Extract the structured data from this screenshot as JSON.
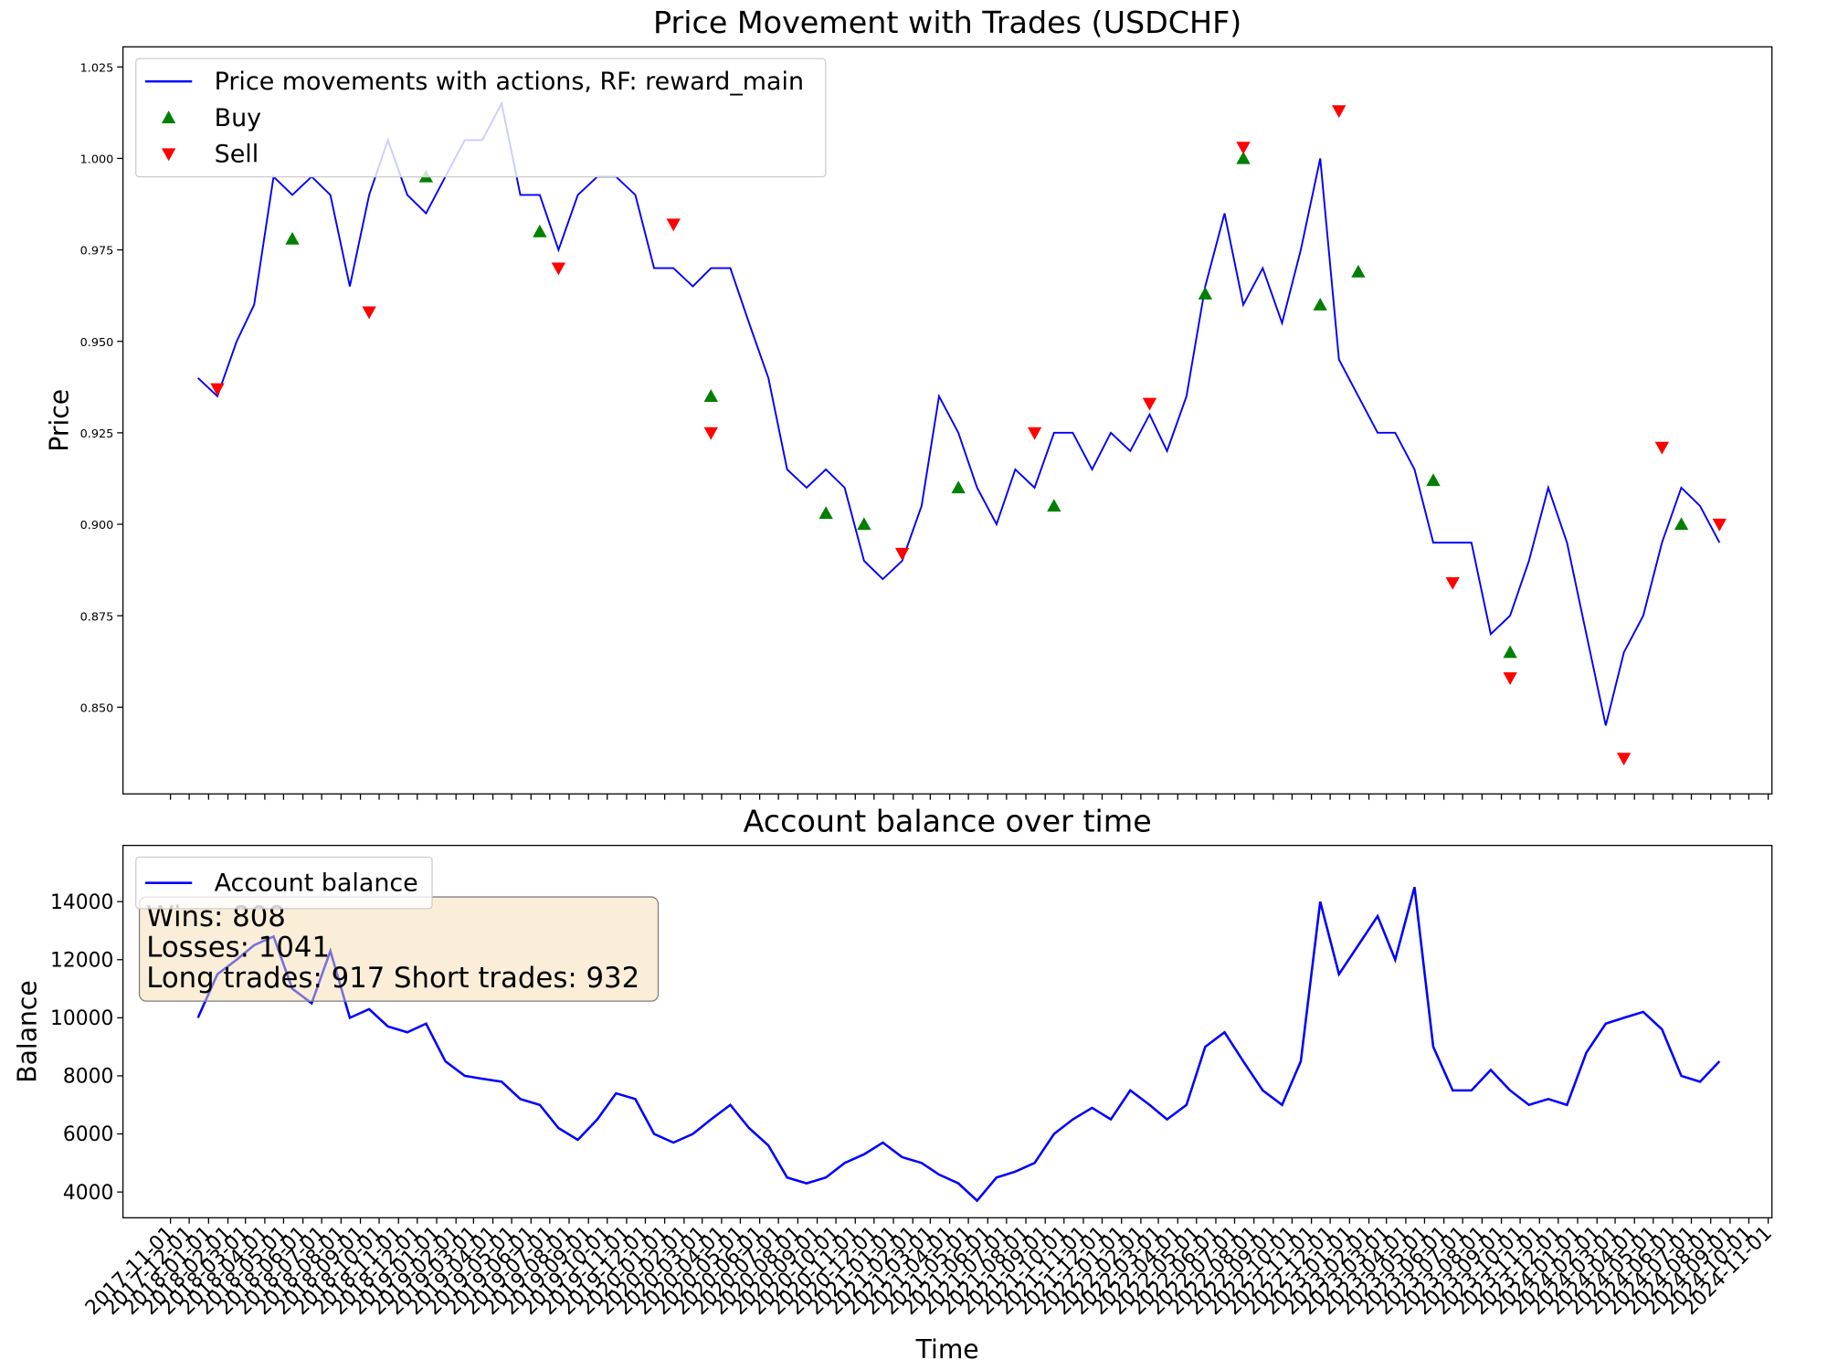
{
  "chart_data": [
    {
      "type": "line",
      "title": "Price Movement with Trades (USDCHF)",
      "ylabel": "Price",
      "legend": "upper left",
      "xlim": [
        "2017-08-17",
        "2024-11-07"
      ],
      "ylim": [
        0.8263,
        1.0305
      ],
      "yticks": [
        {
          "value": 0.85,
          "label": "0.850"
        },
        {
          "value": 0.875,
          "label": "0.875"
        },
        {
          "value": 0.9,
          "label": "0.900"
        },
        {
          "value": 0.925,
          "label": "0.925"
        },
        {
          "value": 0.95,
          "label": "0.950"
        },
        {
          "value": 0.975,
          "label": "0.975"
        },
        {
          "value": 1.0,
          "label": "1.000"
        },
        {
          "value": 1.025,
          "label": "1.025"
        }
      ],
      "x": [
        "2017-12-15",
        "2018-01-15",
        "2018-02-15",
        "2018-03-15",
        "2018-04-15",
        "2018-05-15",
        "2018-06-15",
        "2018-07-15",
        "2018-08-15",
        "2018-09-15",
        "2018-10-15",
        "2018-11-15",
        "2018-12-15",
        "2019-01-15",
        "2019-02-15",
        "2019-03-15",
        "2019-04-15",
        "2019-05-15",
        "2019-06-15",
        "2019-07-15",
        "2019-08-15",
        "2019-09-15",
        "2019-10-15",
        "2019-11-15",
        "2019-12-15",
        "2020-01-15",
        "2020-02-15",
        "2020-03-15",
        "2020-04-15",
        "2020-05-15",
        "2020-06-15",
        "2020-07-15",
        "2020-08-15",
        "2020-09-15",
        "2020-10-15",
        "2020-11-15",
        "2020-12-15",
        "2021-01-15",
        "2021-02-15",
        "2021-03-15",
        "2021-04-15",
        "2021-05-15",
        "2021-06-15",
        "2021-07-15",
        "2021-08-15",
        "2021-09-15",
        "2021-10-15",
        "2021-11-15",
        "2021-12-15",
        "2022-01-15",
        "2022-02-15",
        "2022-03-15",
        "2022-04-15",
        "2022-05-15",
        "2022-06-15",
        "2022-07-15",
        "2022-08-15",
        "2022-09-15",
        "2022-10-15",
        "2022-11-15",
        "2022-12-15",
        "2023-01-15",
        "2023-02-15",
        "2023-03-15",
        "2023-04-15",
        "2023-05-15",
        "2023-06-15",
        "2023-07-15",
        "2023-08-15",
        "2023-09-15",
        "2023-10-15",
        "2023-11-15",
        "2023-12-15",
        "2024-01-15",
        "2024-02-15",
        "2024-03-15",
        "2024-04-15",
        "2024-05-15",
        "2024-06-15",
        "2024-07-15",
        "2024-08-15"
      ],
      "series": [
        {
          "name": "Price movements with actions, RF: reward_main",
          "type": "line",
          "color": "#0000ff",
          "values": [
            0.94,
            0.935,
            0.95,
            0.96,
            0.995,
            0.99,
            0.995,
            0.99,
            0.965,
            0.99,
            1.005,
            0.99,
            0.985,
            0.995,
            1.005,
            1.005,
            1.015,
            0.99,
            0.99,
            0.975,
            0.99,
            0.995,
            0.995,
            0.99,
            0.97,
            0.97,
            0.965,
            0.97,
            0.97,
            0.955,
            0.94,
            0.915,
            0.91,
            0.915,
            0.91,
            0.89,
            0.885,
            0.89,
            0.905,
            0.935,
            0.925,
            0.91,
            0.9,
            0.915,
            0.91,
            0.925,
            0.925,
            0.915,
            0.925,
            0.92,
            0.93,
            0.92,
            0.935,
            0.965,
            0.985,
            0.96,
            0.97,
            0.955,
            0.975,
            1.0,
            0.945,
            0.935,
            0.925,
            0.925,
            0.915,
            0.895,
            0.895,
            0.895,
            0.87,
            0.875,
            0.89,
            0.91,
            0.895,
            0.87,
            0.845,
            0.865,
            0.875,
            0.895,
            0.91,
            0.905,
            0.895
          ]
        },
        {
          "name": "Buy",
          "type": "scatter",
          "marker": "up",
          "color": "#008000",
          "x": [
            "2018-05-15",
            "2018-12-15",
            "2019-06-15",
            "2020-03-15",
            "2020-09-15",
            "2020-11-15",
            "2021-04-15",
            "2021-09-15",
            "2022-05-15",
            "2022-07-15",
            "2022-11-15",
            "2023-01-15",
            "2023-05-15",
            "2023-09-15",
            "2024-06-15"
          ],
          "values": [
            0.978,
            0.995,
            0.98,
            0.935,
            0.903,
            0.9,
            0.91,
            0.905,
            0.963,
            1.0,
            0.96,
            0.969,
            0.912,
            0.865,
            0.9
          ]
        },
        {
          "name": "Sell",
          "type": "scatter",
          "marker": "down",
          "color": "#ff0000",
          "x": [
            "2018-01-15",
            "2018-09-15",
            "2019-07-15",
            "2020-01-15",
            "2020-03-15",
            "2021-01-15",
            "2021-08-15",
            "2022-02-15",
            "2022-07-15",
            "2022-12-15",
            "2023-06-15",
            "2023-09-15",
            "2024-03-15",
            "2024-05-15",
            "2024-08-15"
          ],
          "values": [
            0.937,
            0.958,
            0.97,
            0.982,
            0.925,
            0.892,
            0.925,
            0.933,
            1.003,
            1.013,
            0.884,
            0.858,
            0.836,
            0.921,
            0.9
          ]
        }
      ]
    },
    {
      "type": "line",
      "title": "Account balance over time",
      "xlabel": "Time",
      "ylabel": "Balance",
      "legend": "upper left",
      "xlim": [
        "2017-08-17",
        "2024-11-07"
      ],
      "ylim": [
        3113,
        15935
      ],
      "yticks": [
        4000,
        6000,
        8000,
        10000,
        12000,
        14000
      ],
      "xticks": [
        "2017-11-01",
        "2017-12-01",
        "2018-01-01",
        "2018-02-01",
        "2018-03-01",
        "2018-04-01",
        "2018-05-01",
        "2018-06-01",
        "2018-07-01",
        "2018-08-01",
        "2018-09-01",
        "2018-10-01",
        "2018-11-01",
        "2018-12-01",
        "2019-01-01",
        "2019-02-01",
        "2019-03-01",
        "2019-04-01",
        "2019-05-01",
        "2019-06-01",
        "2019-07-01",
        "2019-08-01",
        "2019-09-01",
        "2019-10-01",
        "2019-11-01",
        "2019-12-01",
        "2020-01-01",
        "2020-02-01",
        "2020-03-01",
        "2020-04-01",
        "2020-05-01",
        "2020-06-01",
        "2020-07-01",
        "2020-08-01",
        "2020-09-01",
        "2020-10-01",
        "2020-11-01",
        "2020-12-01",
        "2021-01-01",
        "2021-02-01",
        "2021-03-01",
        "2021-04-01",
        "2021-05-01",
        "2021-06-01",
        "2021-07-01",
        "2021-08-01",
        "2021-09-01",
        "2021-10-01",
        "2021-11-01",
        "2021-12-01",
        "2022-01-01",
        "2022-02-01",
        "2022-03-01",
        "2022-04-01",
        "2022-05-01",
        "2022-06-01",
        "2022-07-01",
        "2022-08-01",
        "2022-09-01",
        "2022-10-01",
        "2022-11-01",
        "2022-12-01",
        "2023-01-01",
        "2023-02-01",
        "2023-03-01",
        "2023-04-01",
        "2023-05-01",
        "2023-06-01",
        "2023-07-01",
        "2023-08-01",
        "2023-09-01",
        "2023-10-01",
        "2023-11-01",
        "2023-12-01",
        "2024-01-01",
        "2024-02-01",
        "2024-03-01",
        "2024-04-01",
        "2024-05-01",
        "2024-06-01",
        "2024-07-01",
        "2024-08-01",
        "2024-09-01",
        "2024-10-01",
        "2024-11-01"
      ],
      "x": [
        "2017-12-15",
        "2018-01-15",
        "2018-02-15",
        "2018-03-15",
        "2018-04-15",
        "2018-05-15",
        "2018-06-15",
        "2018-07-15",
        "2018-08-15",
        "2018-09-15",
        "2018-10-15",
        "2018-11-15",
        "2018-12-15",
        "2019-01-15",
        "2019-02-15",
        "2019-03-15",
        "2019-04-15",
        "2019-05-15",
        "2019-06-15",
        "2019-07-15",
        "2019-08-15",
        "2019-09-15",
        "2019-10-15",
        "2019-11-15",
        "2019-12-15",
        "2020-01-15",
        "2020-02-15",
        "2020-03-15",
        "2020-04-15",
        "2020-05-15",
        "2020-06-15",
        "2020-07-15",
        "2020-08-15",
        "2020-09-15",
        "2020-10-15",
        "2020-11-15",
        "2020-12-15",
        "2021-01-15",
        "2021-02-15",
        "2021-03-15",
        "2021-04-15",
        "2021-05-15",
        "2021-06-15",
        "2021-07-15",
        "2021-08-15",
        "2021-09-15",
        "2021-10-15",
        "2021-11-15",
        "2021-12-15",
        "2022-01-15",
        "2022-02-15",
        "2022-03-15",
        "2022-04-15",
        "2022-05-15",
        "2022-06-15",
        "2022-07-15",
        "2022-08-15",
        "2022-09-15",
        "2022-10-15",
        "2022-11-15",
        "2022-12-15",
        "2023-01-15",
        "2023-02-15",
        "2023-03-15",
        "2023-04-15",
        "2023-05-15",
        "2023-06-15",
        "2023-07-15",
        "2023-08-15",
        "2023-09-15",
        "2023-10-15",
        "2023-11-15",
        "2023-12-15",
        "2024-01-15",
        "2024-02-15",
        "2024-03-15",
        "2024-04-15",
        "2024-05-15",
        "2024-06-15",
        "2024-07-15",
        "2024-08-15"
      ],
      "series": [
        {
          "name": "Account balance",
          "type": "line",
          "color": "#0000ff",
          "values": [
            10000,
            11500,
            12000,
            12500,
            12800,
            11000,
            10500,
            12300,
            10000,
            10300,
            9700,
            9500,
            9800,
            8500,
            8000,
            7900,
            7800,
            7200,
            7000,
            6200,
            5800,
            6500,
            7400,
            7200,
            6000,
            5700,
            6000,
            6500,
            7000,
            6200,
            5600,
            4500,
            4300,
            4500,
            5000,
            5300,
            5700,
            5200,
            5000,
            4600,
            4300,
            3700,
            4500,
            4700,
            5000,
            6000,
            6500,
            6900,
            6500,
            7500,
            7000,
            6500,
            7000,
            9000,
            9500,
            8500,
            7500,
            7000,
            8500,
            14000,
            11500,
            12500,
            13500,
            12000,
            14500,
            9000,
            7500,
            7500,
            8200,
            7500,
            7000,
            7200,
            7000,
            8800,
            9800,
            10000,
            10200,
            9600,
            8000,
            7800,
            8500
          ]
        }
      ],
      "annotation": [
        "Wins: 808",
        "Losses: 1041",
        "Long trades: 917 Short trades: 932"
      ]
    }
  ]
}
